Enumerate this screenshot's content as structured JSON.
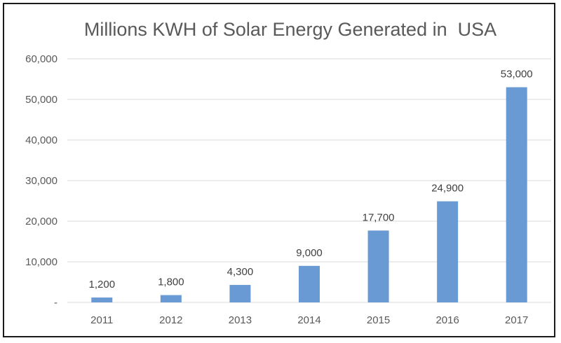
{
  "chart_data": {
    "type": "bar",
    "title": "Millions KWH of Solar Energy Generated in  USA",
    "categories": [
      "2011",
      "2012",
      "2013",
      "2014",
      "2015",
      "2016",
      "2017"
    ],
    "values": [
      1200,
      1800,
      4300,
      9000,
      17700,
      24900,
      53000
    ],
    "data_labels": [
      "1,200",
      "1,800",
      "4,300",
      "9,000",
      "17,700",
      "24,900",
      "53,000"
    ],
    "y_ticks": [
      0,
      10000,
      20000,
      30000,
      40000,
      50000,
      60000
    ],
    "y_tick_labels": [
      "-",
      "10,000",
      "20,000",
      "30,000",
      "40,000",
      "50,000",
      "60,000"
    ],
    "ylim": [
      0,
      60000
    ],
    "grid": true,
    "legend": "none",
    "bar_color": "#6a9ad3"
  }
}
